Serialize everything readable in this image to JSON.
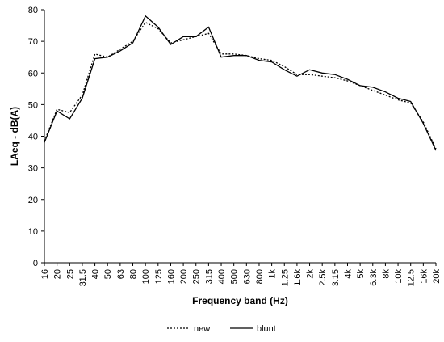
{
  "chart_data": {
    "type": "line",
    "categories": [
      "16",
      "20",
      "25",
      "31.5",
      "40",
      "50",
      "63",
      "80",
      "100",
      "125",
      "160",
      "200",
      "250",
      "315",
      "400",
      "500",
      "630",
      "800",
      "1k",
      "1.25",
      "1.6k",
      "2k",
      "2.5k",
      "3.15",
      "4k",
      "5k",
      "6.3k",
      "8k",
      "10k",
      "12.5",
      "16k",
      "20k"
    ],
    "series": [
      {
        "name": "new",
        "values": [
          38.5,
          48.5,
          47.5,
          53,
          66,
          65,
          67.5,
          70,
          76,
          74,
          69.5,
          70.5,
          71.5,
          72.5,
          66,
          66,
          65.5,
          64.5,
          64,
          62,
          59.5,
          59.5,
          59,
          58.5,
          57.5,
          56,
          54.5,
          53,
          51.5,
          50.5,
          44.5,
          36
        ],
        "color": "#000000",
        "dash": "dotted"
      },
      {
        "name": "blunt",
        "values": [
          38,
          48,
          45.5,
          52,
          64.5,
          65,
          67,
          69.5,
          78,
          74.5,
          69,
          71.5,
          71.5,
          74.5,
          65,
          65.5,
          65.5,
          64,
          63.5,
          61,
          59,
          61,
          60,
          59.5,
          58,
          56,
          55.5,
          54,
          52,
          51,
          44,
          35.5
        ],
        "color": "#000000",
        "dash": "solid"
      }
    ],
    "xlabel": "Frequency band (Hz)",
    "ylabel": "LAeq - dB(A)",
    "ylim": [
      0,
      80
    ],
    "yticks": [
      0,
      10,
      20,
      30,
      40,
      50,
      60,
      70,
      80
    ],
    "grid": false,
    "legend": "bottom"
  }
}
